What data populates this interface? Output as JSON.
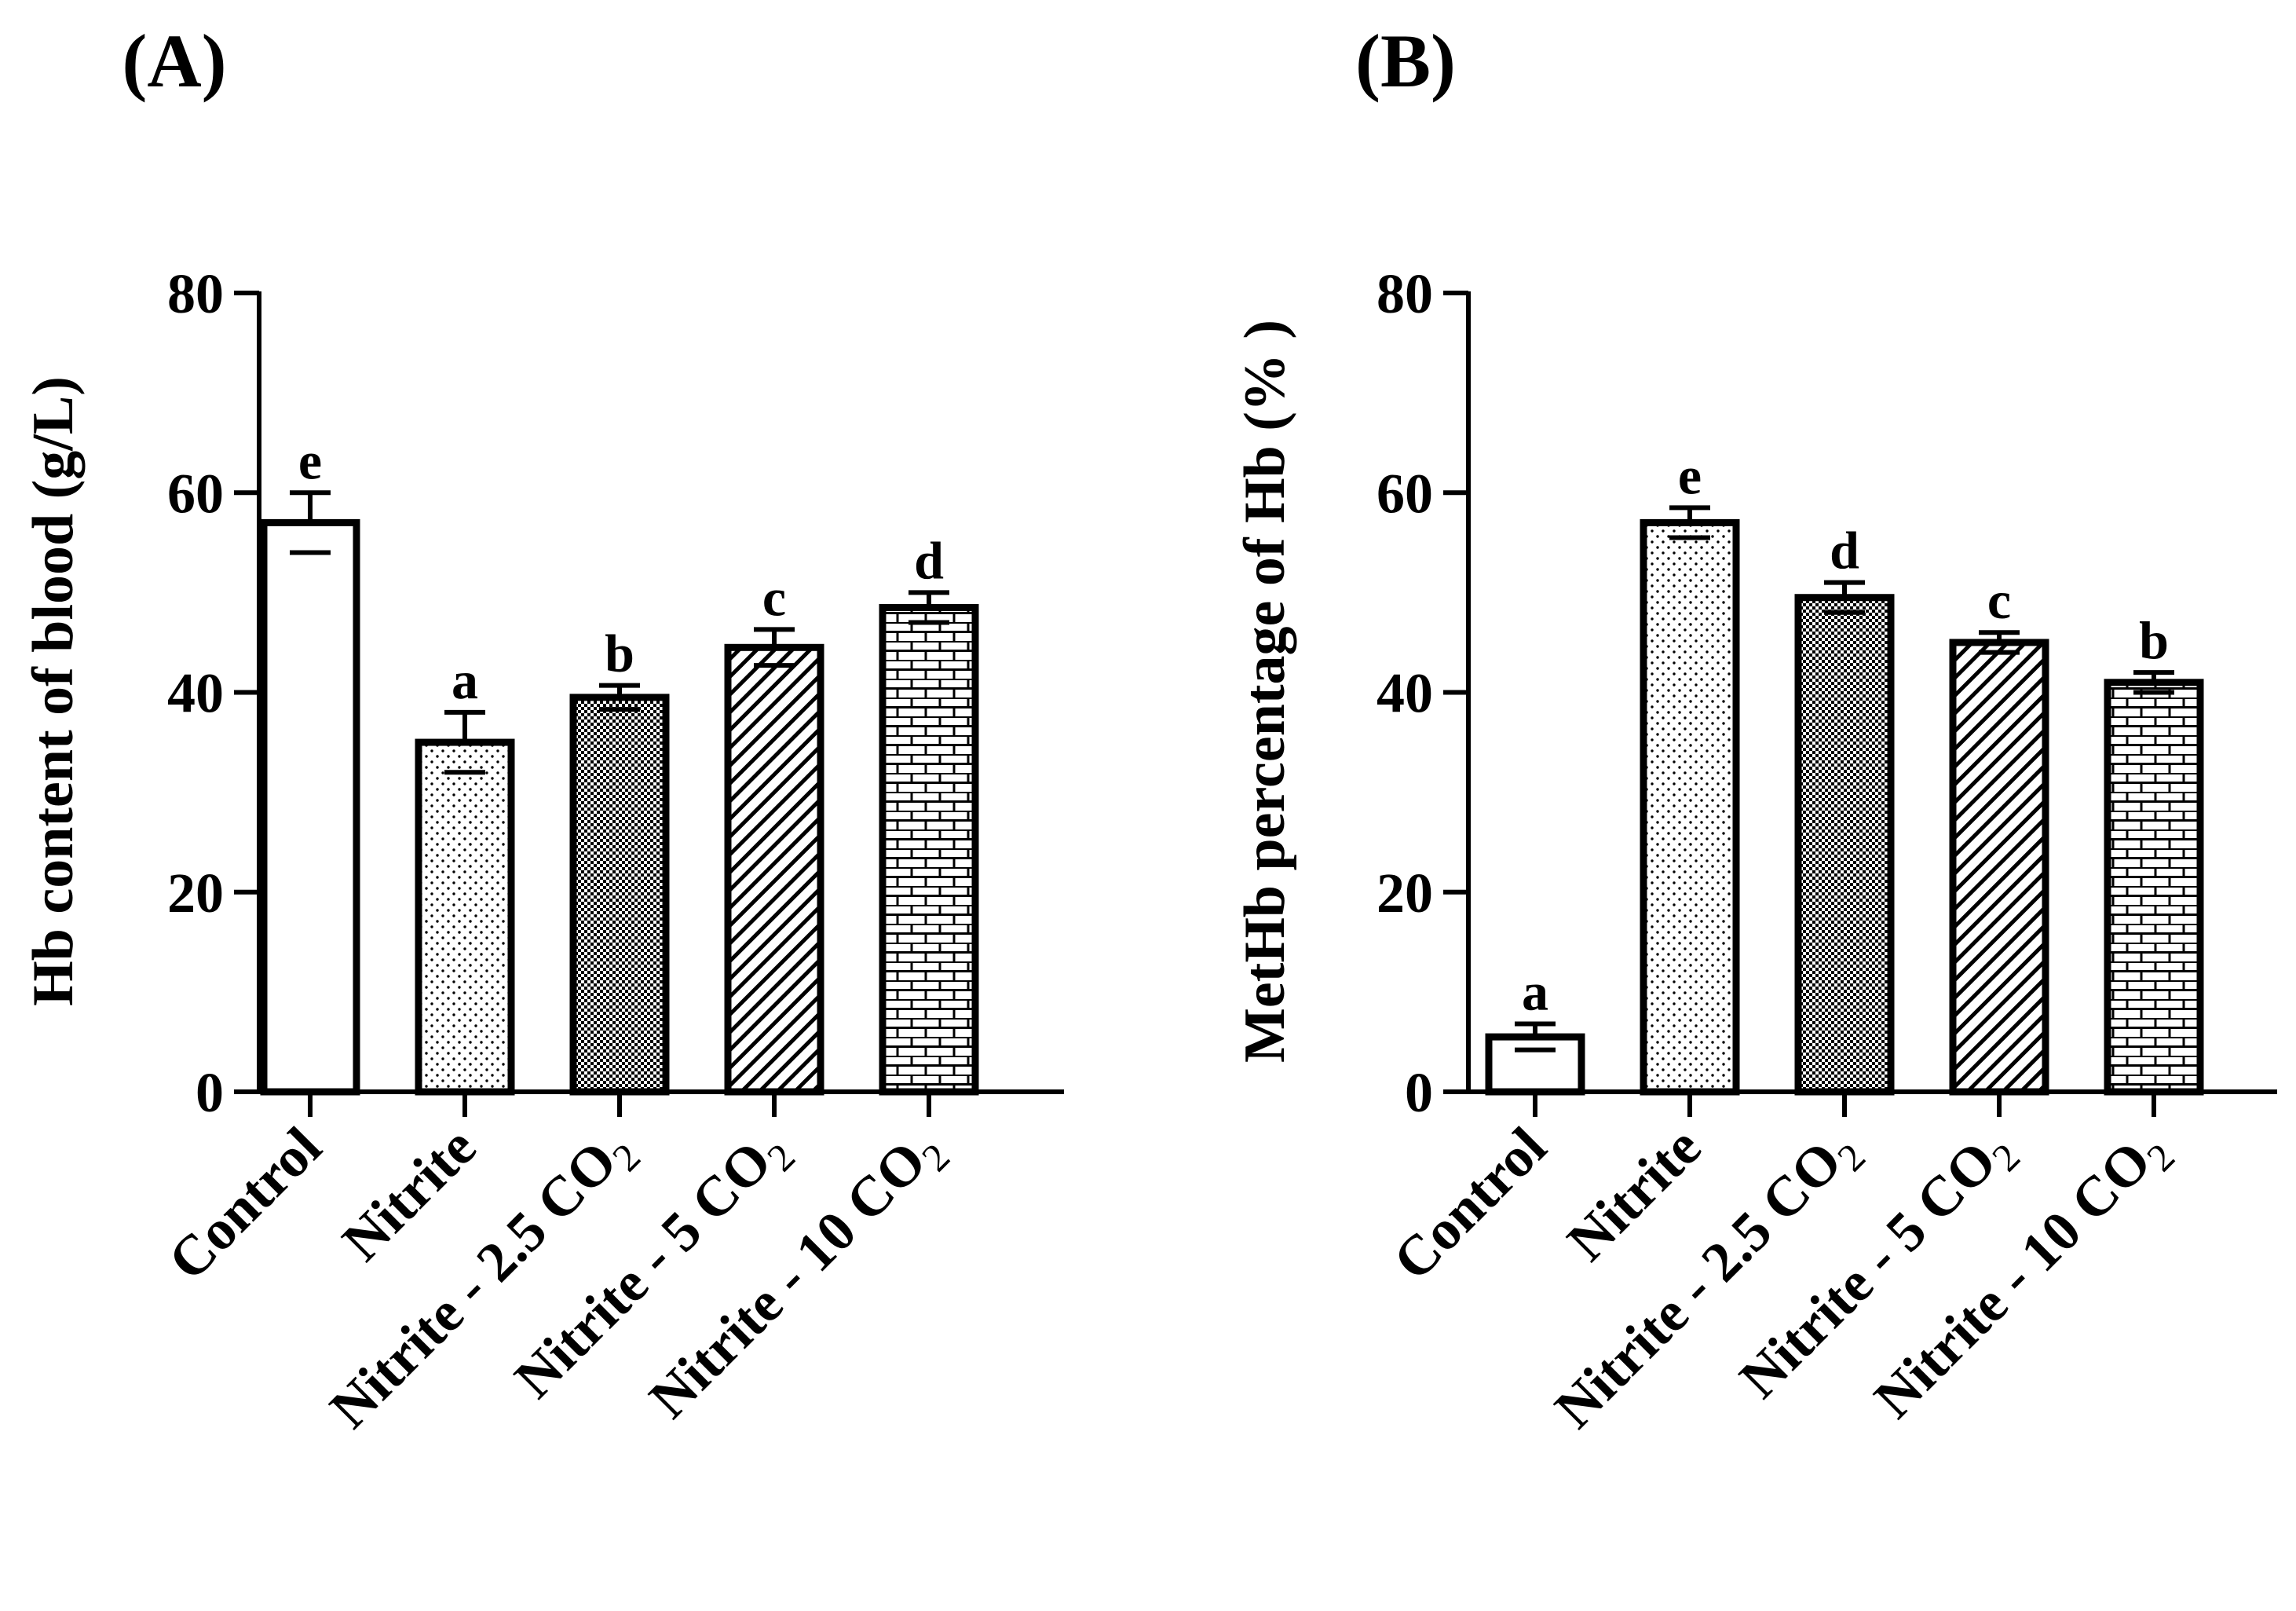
{
  "chart_data": [
    {
      "type": "bar",
      "panel_label": "(A)",
      "ylabel": "Hb content of blood (g/L)",
      "xlabel": "",
      "ylim": [
        0,
        80
      ],
      "yticks": [
        0,
        20,
        40,
        60,
        80
      ],
      "categories": [
        {
          "main": "Control",
          "sub": ""
        },
        {
          "main": "Nitrite",
          "sub": ""
        },
        {
          "main": "Nitrite - 2.5 CO",
          "sub": "2"
        },
        {
          "main": "Nitrite - 5 CO",
          "sub": "2"
        },
        {
          "main": "Nitrite - 10 CO",
          "sub": "2"
        }
      ],
      "values": [
        57,
        35,
        39.5,
        44.5,
        48.5
      ],
      "errors": [
        3,
        3,
        1.2,
        1.8,
        1.5
      ],
      "letters": [
        "e",
        "a",
        "b",
        "c",
        "d"
      ],
      "patterns": [
        "empty",
        "dots",
        "dense-dots",
        "diagonal",
        "brick"
      ],
      "grid": false
    },
    {
      "type": "bar",
      "panel_label": "(B)",
      "ylabel": "MetHb percentage of Hb (% )",
      "xlabel": "",
      "ylim": [
        0,
        80
      ],
      "yticks": [
        0,
        20,
        40,
        60,
        80
      ],
      "categories": [
        {
          "main": "Control",
          "sub": ""
        },
        {
          "main": "Nitrite",
          "sub": ""
        },
        {
          "main": "Nitrite - 2.5 CO",
          "sub": "2"
        },
        {
          "main": "Nitrite - 5 CO",
          "sub": "2"
        },
        {
          "main": "Nitrite - 10 CO",
          "sub": "2"
        }
      ],
      "values": [
        5.5,
        57,
        49.5,
        45,
        41
      ],
      "errors": [
        1.3,
        1.5,
        1.5,
        1,
        1
      ],
      "letters": [
        "a",
        "e",
        "d",
        "c",
        "b"
      ],
      "patterns": [
        "empty",
        "dots",
        "dense-dots",
        "diagonal",
        "brick"
      ],
      "grid": false
    }
  ]
}
